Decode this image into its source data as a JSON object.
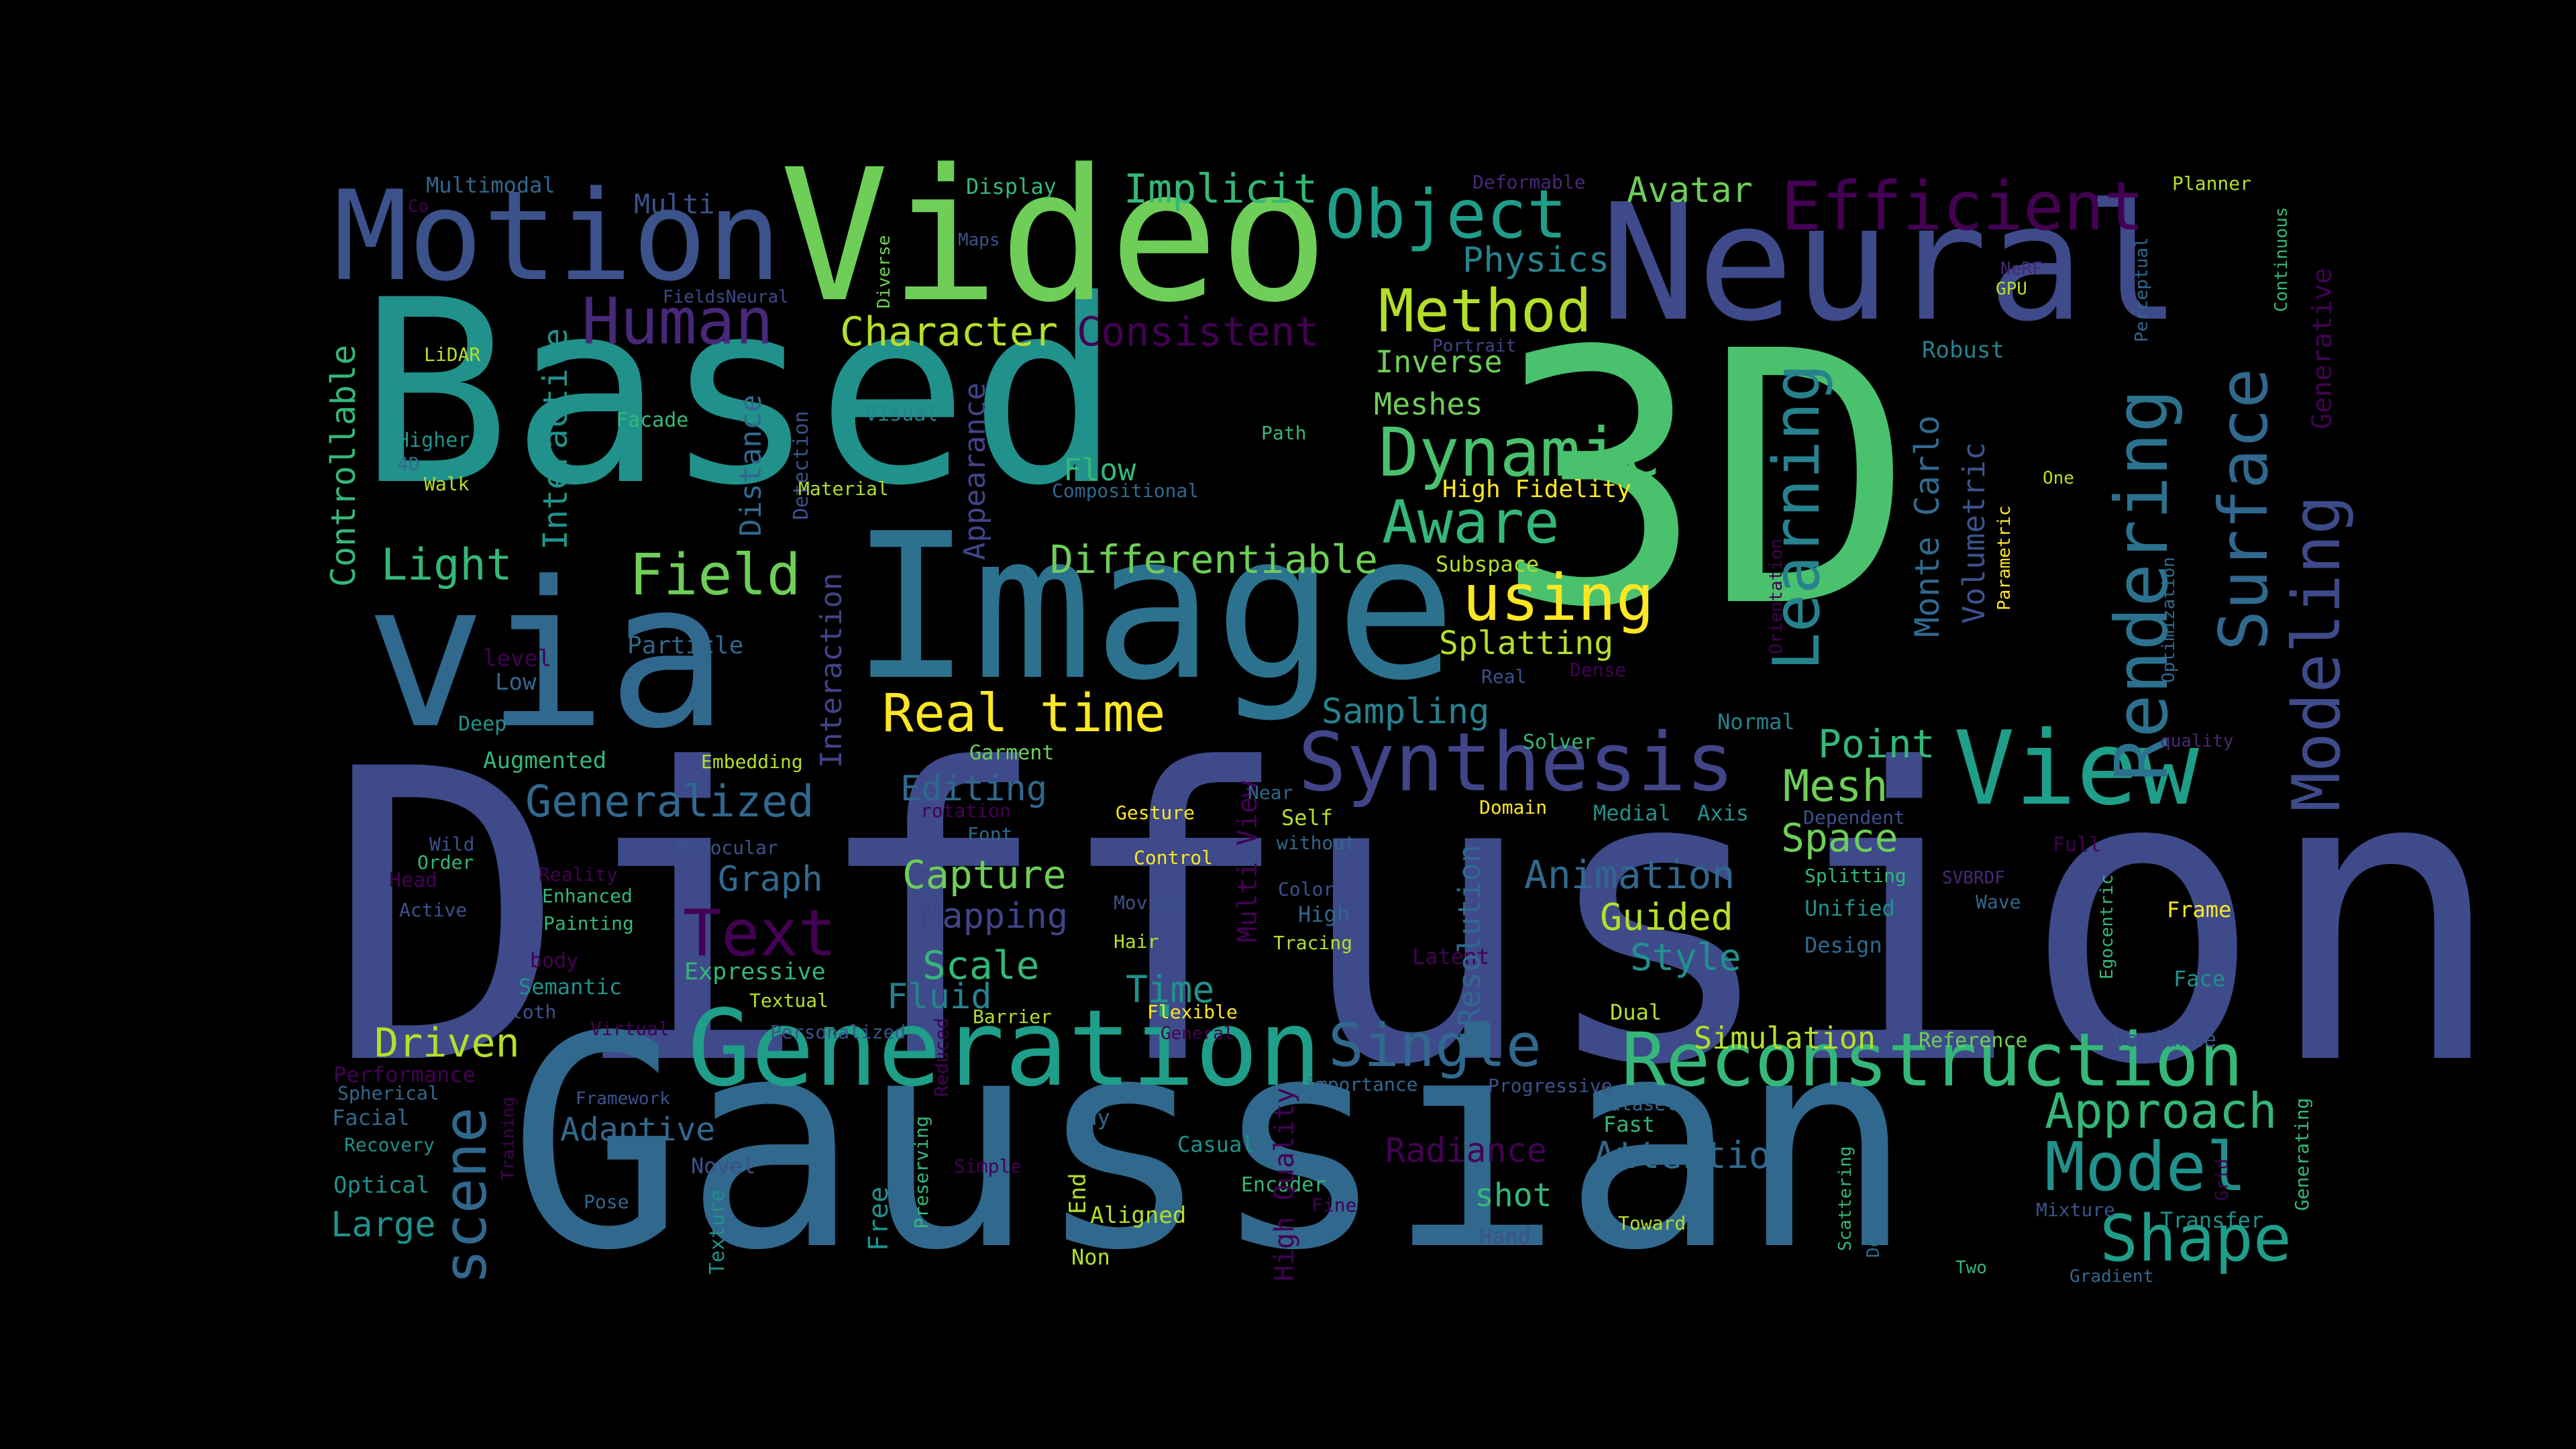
{
  "palette": {
    "background": "#000000",
    "p1": "#440154",
    "p2": "#482878",
    "p3": "#3e4a89",
    "p4": "#31688e",
    "p5": "#26828e",
    "p6": "#1f9e89",
    "p7": "#35b779",
    "p8": "#6ece58",
    "p9": "#b5de2b",
    "p10": "#fde725"
  },
  "words": [
    {
      "text": "Diffusion",
      "color": "#3e4a89"
    },
    {
      "text": "Gaussian",
      "color": "#31688e"
    },
    {
      "text": "3D",
      "color": "#4ac16d"
    },
    {
      "text": "Based",
      "color": "#21918c"
    },
    {
      "text": "via",
      "color": "#31688e"
    },
    {
      "text": "Image",
      "color": "#2c728e"
    },
    {
      "text": "Video",
      "color": "#6ece58"
    },
    {
      "text": "Neural",
      "color": "#3e4a89"
    },
    {
      "text": "Motion",
      "color": "#3b528b"
    },
    {
      "text": "Generation",
      "color": "#1f9e89"
    },
    {
      "text": "Reconstruction",
      "color": "#35b779"
    },
    {
      "text": "View",
      "color": "#1f9e89"
    },
    {
      "text": "Synthesis",
      "color": "#414487"
    },
    {
      "text": "Efficient",
      "color": "#440154"
    },
    {
      "text": "Object",
      "color": "#1f9e89"
    },
    {
      "text": "Dynamic",
      "color": "#4ac16d"
    },
    {
      "text": "Rendering",
      "color": "#2c728e"
    },
    {
      "text": "Surface",
      "color": "#31688e"
    },
    {
      "text": "Modeling",
      "color": "#3e4a89"
    },
    {
      "text": "Learning",
      "color": "#26828e"
    },
    {
      "text": "Model",
      "color": "#21918c"
    },
    {
      "text": "Shape",
      "color": "#1f9e89"
    },
    {
      "text": "Human",
      "color": "#482878"
    },
    {
      "text": "Method",
      "color": "#b5de2b"
    },
    {
      "text": "Aware",
      "color": "#35b779"
    },
    {
      "text": "using",
      "color": "#fde725"
    },
    {
      "text": "Field",
      "color": "#6ece58"
    },
    {
      "text": "Real time",
      "color": "#fde725"
    },
    {
      "text": "Text",
      "color": "#440154"
    },
    {
      "text": "Single",
      "color": "#31688e"
    },
    {
      "text": "Approach",
      "color": "#35b779"
    },
    {
      "text": "Generalized",
      "color": "#31688e"
    },
    {
      "text": "Mesh",
      "color": "#6ece58"
    },
    {
      "text": "Light",
      "color": "#35b779"
    },
    {
      "text": "Differentiable",
      "color": "#6ece58"
    },
    {
      "text": "Character",
      "color": "#b5de2b"
    },
    {
      "text": "Consistent",
      "color": "#440154"
    },
    {
      "text": "Implicit",
      "color": "#35b779"
    },
    {
      "text": "Physics",
      "color": "#26828e"
    },
    {
      "text": "Avatar",
      "color": "#6ece58"
    },
    {
      "text": "Point",
      "color": "#35b779"
    },
    {
      "text": "Space",
      "color": "#6ece58"
    },
    {
      "text": "Animation",
      "color": "#31688e"
    },
    {
      "text": "Guided",
      "color": "#b5de2b"
    },
    {
      "text": "Style",
      "color": "#21918c"
    },
    {
      "text": "Attention",
      "color": "#31688e"
    },
    {
      "text": "Capture",
      "color": "#6ece58"
    },
    {
      "text": "Scale",
      "color": "#35b779"
    },
    {
      "text": "Time",
      "color": "#21918c"
    },
    {
      "text": "Fluid",
      "color": "#26828e"
    },
    {
      "text": "Driven",
      "color": "#b5de2b"
    },
    {
      "text": "Mapping",
      "color": "#414487"
    },
    {
      "text": "Graph",
      "color": "#31688e"
    },
    {
      "text": "Editing",
      "color": "#31688e"
    },
    {
      "text": "Sampling",
      "color": "#26828e"
    },
    {
      "text": "Splatting",
      "color": "#b5de2b"
    },
    {
      "text": "Simulation",
      "color": "#b5de2b"
    },
    {
      "text": "Adaptive",
      "color": "#31688e"
    },
    {
      "text": "Large",
      "color": "#21918c"
    },
    {
      "text": "Radiance",
      "color": "#440154"
    },
    {
      "text": "shot",
      "color": "#35b779"
    },
    {
      "text": "Inverse",
      "color": "#6ece58"
    },
    {
      "text": "Meshes",
      "color": "#6ece58"
    },
    {
      "text": "Flow",
      "color": "#35b779"
    },
    {
      "text": "Multi",
      "color": "#3b528b"
    },
    {
      "text": "Multimodal",
      "color": "#31688e"
    },
    {
      "text": "Display",
      "color": "#35b779"
    },
    {
      "text": "Deformable",
      "color": "#482878"
    },
    {
      "text": "Planner",
      "color": "#b5de2b"
    },
    {
      "text": "Generative",
      "color": "#440154"
    },
    {
      "text": "Continuous",
      "color": "#35b779"
    },
    {
      "text": "Perceptual",
      "color": "#31688e"
    },
    {
      "text": "NeRF",
      "color": "#482878"
    },
    {
      "text": "GPU",
      "color": "#b5de2b"
    },
    {
      "text": "Robust",
      "color": "#26828e"
    },
    {
      "text": "Portrait",
      "color": "#414487"
    },
    {
      "text": "Maps",
      "color": "#3b528b"
    },
    {
      "text": "Diverse",
      "color": "#6ece58"
    },
    {
      "text": "FieldsNeural",
      "color": "#3e4a89"
    },
    {
      "text": "Co",
      "color": "#440154"
    },
    {
      "text": "LiDAR",
      "color": "#b5de2b"
    },
    {
      "text": "Controllable",
      "color": "#35b779"
    },
    {
      "text": "Interactive",
      "color": "#21918c"
    },
    {
      "text": "Higher",
      "color": "#21918c"
    },
    {
      "text": "4D",
      "color": "#31688e"
    },
    {
      "text": "Walk",
      "color": "#b5de2b"
    },
    {
      "text": "Facade",
      "color": "#35b779"
    },
    {
      "text": "Visual",
      "color": "#26828e"
    },
    {
      "text": "Distance",
      "color": "#31688e"
    },
    {
      "text": "Detection",
      "color": "#3b528b"
    },
    {
      "text": "Material",
      "color": "#b5de2b"
    },
    {
      "text": "Appearance",
      "color": "#414487"
    },
    {
      "text": "Path",
      "color": "#35b779"
    },
    {
      "text": "Compositional",
      "color": "#31688e"
    },
    {
      "text": "High Fidelity",
      "color": "#fde725"
    },
    {
      "text": "One",
      "color": "#b5de2b"
    },
    {
      "text": "Monte Carlo",
      "color": "#31688e"
    },
    {
      "text": "Volumetric",
      "color": "#3b528b"
    },
    {
      "text": "Parametric",
      "color": "#fde725"
    },
    {
      "text": "Orientation",
      "color": "#440154"
    },
    {
      "text": "Optimization",
      "color": "#31688e"
    },
    {
      "text": "Subspace",
      "color": "#b5de2b"
    },
    {
      "text": "Interaction",
      "color": "#414487"
    },
    {
      "text": "Particle",
      "color": "#31688e"
    },
    {
      "text": "level",
      "color": "#440154"
    },
    {
      "text": "Low",
      "color": "#31688e"
    },
    {
      "text": "Deep",
      "color": "#21918c"
    },
    {
      "text": "Augmented",
      "color": "#35b779"
    },
    {
      "text": "Embedding",
      "color": "#b5de2b"
    },
    {
      "text": "Garment",
      "color": "#6ece58"
    },
    {
      "text": "Real",
      "color": "#3b528b"
    },
    {
      "text": "Dense",
      "color": "#440154"
    },
    {
      "text": "Normal",
      "color": "#26828e"
    },
    {
      "text": "Solver",
      "color": "#35b779"
    },
    {
      "text": "quality",
      "color": "#482878"
    },
    {
      "text": "Multi View",
      "color": "#440154"
    },
    {
      "text": "Near",
      "color": "#31688e"
    },
    {
      "text": "Self",
      "color": "#b5de2b"
    },
    {
      "text": "without",
      "color": "#31688e"
    },
    {
      "text": "Domain",
      "color": "#fde725"
    },
    {
      "text": "Medial",
      "color": "#21918c"
    },
    {
      "text": "Axis",
      "color": "#21918c"
    },
    {
      "text": "Dependent",
      "color": "#3b528b"
    },
    {
      "text": "Full",
      "color": "#440154"
    },
    {
      "text": "rotation",
      "color": "#440154"
    },
    {
      "text": "Gesture",
      "color": "#fde725"
    },
    {
      "text": "Font",
      "color": "#31688e"
    },
    {
      "text": "Wild",
      "color": "#3b528b"
    },
    {
      "text": "Order",
      "color": "#35b779"
    },
    {
      "text": "Head",
      "color": "#440154"
    },
    {
      "text": "Active",
      "color": "#3b528b"
    },
    {
      "text": "Monocular",
      "color": "#3b528b"
    },
    {
      "text": "Reality",
      "color": "#440154"
    },
    {
      "text": "Enhanced",
      "color": "#35b779"
    },
    {
      "text": "Painting",
      "color": "#35b779"
    },
    {
      "text": "body",
      "color": "#440154"
    },
    {
      "text": "Semantic",
      "color": "#21918c"
    },
    {
      "text": "Cloth",
      "color": "#3b528b"
    },
    {
      "text": "Virtual",
      "color": "#440154"
    },
    {
      "text": "Control",
      "color": "#fde725"
    },
    {
      "text": "Moving",
      "color": "#3b528b"
    },
    {
      "text": "Hair",
      "color": "#b5de2b"
    },
    {
      "text": "Color",
      "color": "#3b528b"
    },
    {
      "text": "High",
      "color": "#31688e"
    },
    {
      "text": "Tracing",
      "color": "#b5de2b"
    },
    {
      "text": "Splitting",
      "color": "#35b779"
    },
    {
      "text": "Unified",
      "color": "#21918c"
    },
    {
      "text": "Design",
      "color": "#31688e"
    },
    {
      "text": "SVBRDF",
      "color": "#482878"
    },
    {
      "text": "Wave",
      "color": "#31688e"
    },
    {
      "text": "Frame",
      "color": "#fde725"
    },
    {
      "text": "Egocentric",
      "color": "#35b779"
    },
    {
      "text": "Face",
      "color": "#21918c"
    },
    {
      "text": "Latent",
      "color": "#440154"
    },
    {
      "text": "Resolution",
      "color": "#31688e"
    },
    {
      "text": "Expressive",
      "color": "#35b779"
    },
    {
      "text": "Textual",
      "color": "#b5de2b"
    },
    {
      "text": "Personalized",
      "color": "#3b528b"
    },
    {
      "text": "Barrier",
      "color": "#b5de2b"
    },
    {
      "text": "Reduced",
      "color": "#440154"
    },
    {
      "text": "Flexible",
      "color": "#fde725"
    },
    {
      "text": "General",
      "color": "#440154"
    },
    {
      "text": "Dual",
      "color": "#b5de2b"
    },
    {
      "text": "Reference",
      "color": "#6ece58"
    },
    {
      "text": "Variance",
      "color": "#3b528b"
    },
    {
      "text": "Performance",
      "color": "#440154"
    },
    {
      "text": "Spherical",
      "color": "#31688e"
    },
    {
      "text": "Facial",
      "color": "#31688e"
    },
    {
      "text": "Recovery",
      "color": "#21918c"
    },
    {
      "text": "Framework",
      "color": "#3b528b"
    },
    {
      "text": "Training",
      "color": "#440154"
    },
    {
      "text": "importance",
      "color": "#31688e"
    },
    {
      "text": "Progressive",
      "color": "#3b528b"
    },
    {
      "text": "Dataset",
      "color": "#31688e"
    },
    {
      "text": "Fast",
      "color": "#35b779"
    },
    {
      "text": "Optical",
      "color": "#21918c"
    },
    {
      "text": "Pose",
      "color": "#31688e"
    },
    {
      "text": "Novel",
      "color": "#3b528b"
    },
    {
      "text": "Simple",
      "color": "#440154"
    },
    {
      "text": "Preserving",
      "color": "#35b779"
    },
    {
      "text": "Free",
      "color": "#21918c"
    },
    {
      "text": "Texture",
      "color": "#21918c"
    },
    {
      "text": "End",
      "color": "#b5de2b"
    },
    {
      "text": "Non",
      "color": "#b5de2b"
    },
    {
      "text": "Aligned",
      "color": "#b5de2b"
    },
    {
      "text": "Ray",
      "color": "#31688e"
    },
    {
      "text": "Casual",
      "color": "#21918c"
    },
    {
      "text": "Encoder",
      "color": "#35b779"
    },
    {
      "text": "Fine",
      "color": "#440154"
    },
    {
      "text": "High Quality",
      "color": "#440154"
    },
    {
      "text": "Hand",
      "color": "#3b528b"
    },
    {
      "text": "Toward",
      "color": "#b5de2b"
    },
    {
      "text": "Scattering",
      "color": "#35b779"
    },
    {
      "text": "Decomposition",
      "color": "#31688e"
    },
    {
      "text": "Two",
      "color": "#35b779"
    },
    {
      "text": "Transfer",
      "color": "#21918c"
    },
    {
      "text": "Mixture",
      "color": "#3b528b"
    },
    {
      "text": "Grid",
      "color": "#440154"
    },
    {
      "text": "Generating",
      "color": "#35b779"
    },
    {
      "text": "Gradient",
      "color": "#31688e"
    },
    {
      "text": "scene",
      "color": "#31688e"
    }
  ]
}
